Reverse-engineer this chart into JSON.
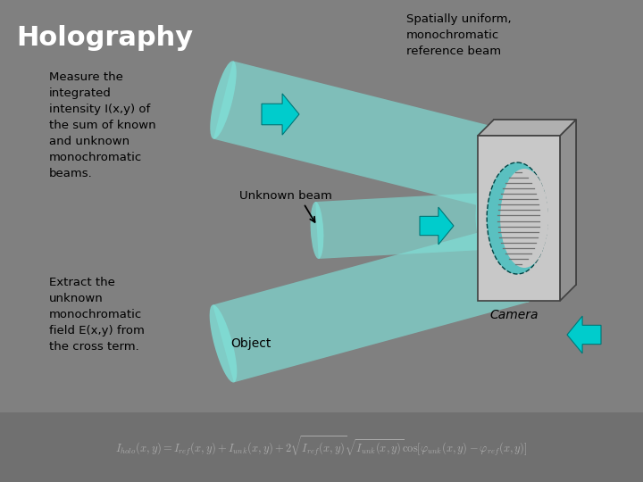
{
  "background_color": "#808080",
  "title": "Holography",
  "title_color": "#ffffff",
  "title_fontsize": 22,
  "text_color": "#000000",
  "text_font": "Comic Sans MS",
  "left_text1_lines": [
    "Measure the",
    "integrated",
    "intensity I(x,y) of",
    "the sum of known",
    "and unknown",
    "monochromatic",
    "beams."
  ],
  "left_text2_lines": [
    "Extract the",
    "unknown",
    "monochromatic",
    "field E(x,y) from",
    "the cross term."
  ],
  "right_text1": "Spatially uniform,\nmonochromatic\nreference beam",
  "label_unknown": "Unknown beam",
  "label_object": "Object",
  "label_camera": "Camera",
  "beam_color": "#7fe0d8",
  "beam_alpha": 0.65,
  "arrow_color": "#00cccc",
  "camera_front": "#c8c8c8",
  "camera_back": "#a8a8a8",
  "camera_edge": "#404040",
  "hologram_color": "#00bbbb",
  "stripe_color": "#808080",
  "bottom_bar_color": "#707070"
}
